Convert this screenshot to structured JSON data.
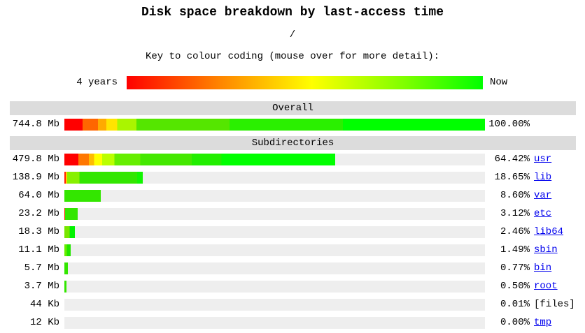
{
  "page": {
    "title": "Disk space breakdown by last-access time",
    "path": "/",
    "key_caption": "Key to colour coding (mouse over for more detail):",
    "key_left_label": "4 years",
    "key_right_label": "Now",
    "overall_header": "Overall",
    "subdirs_header": "Subdirectories"
  },
  "colors": {
    "header_bg": "#dcdcdc",
    "track_bg": "#eeeeee",
    "link_color": "#0000ee",
    "key_gradient": "linear-gradient(90deg,#ff0000 0%,#ff7f00 25%,#ffff00 52%,#7fff00 78%,#00ff00 100%)",
    "oldest_color": "#ff0000",
    "newest_color": "#00ff00"
  },
  "chart_data": {
    "type": "bar",
    "orientation": "horizontal",
    "title": "Disk space breakdown by last-access time",
    "path": "/",
    "key": {
      "caption": "Key to colour coding (mouse over for more detail):",
      "left_label": "4 years",
      "right_label": "Now"
    },
    "sections": [
      "Overall",
      "Subdirectories"
    ],
    "xlim_percent": [
      0,
      100
    ],
    "overall_row": {
      "label": "",
      "size": "744.8 Mb",
      "percent": 100.0,
      "percent_label": "100.00%",
      "is_link": false,
      "bar_background": "linear-gradient(90deg,#ff0000 0%,#ff0000 4.3%,#ff6600 4.3%,#ff6600 8%,#ffaa00 8%,#ffaa00 10%,#ffe400 10%,#ffe400 12.6%,#aaf500 12.6%,#aaf500 17.1%,#55e600 17.1%,#55e600 39.3%,#2af000 39.3%,#2af000 66.2%,#00ff00 66.2%,#00ff00 100%)"
    },
    "subdir_rows": [
      {
        "label": "usr",
        "size": "479.8 Mb",
        "percent": 64.42,
        "percent_label": "64.42%",
        "is_link": true,
        "bar_background": "linear-gradient(90deg,#ff0000 0%,#ff0000 5.2%,#ff7700 5.2%,#ff7700 9%,#ffbb00 9%,#ffbb00 11%,#ffff00 11%,#ffff00 14%,#bbff00 14%,#bbff00 18.5%,#66ee00 18.5%,#66ee00 28%,#44e800 28%,#44e800 47%,#22ee00 47%,#22ee00 58%,#00ff00 58%,#00ff00 100%)"
      },
      {
        "label": "lib",
        "size": "138.9 Mb",
        "percent": 18.65,
        "percent_label": "18.65%",
        "is_link": true,
        "bar_background": "linear-gradient(90deg,#ff2200 0%,#ff2200 2%,#ffcc00 2%,#ffcc00 3.5%,#88f000 3.5%,#88f000 19%,#33e600 19%,#33e600 93%,#11f500 93%,#11f500 100%)"
      },
      {
        "label": "var",
        "size": "64.0 Mb",
        "percent": 8.6,
        "percent_label": "8.60%",
        "is_link": true,
        "bar_background": "#33e600"
      },
      {
        "label": "etc",
        "size": "23.2 Mb",
        "percent": 3.12,
        "percent_label": "3.12%",
        "is_link": true,
        "bar_background": "linear-gradient(90deg,#ff2200 0%,#ff2200 6%,#33e600 6%,#33e600 100%)"
      },
      {
        "label": "lib64",
        "size": "18.3 Mb",
        "percent": 2.46,
        "percent_label": "2.46%",
        "is_link": true,
        "bar_background": "linear-gradient(90deg,#77e600 0%,#77e600 50%,#00f300 50%,#00f300 100%)"
      },
      {
        "label": "sbin",
        "size": "11.1 Mb",
        "percent": 1.49,
        "percent_label": "1.49%",
        "is_link": true,
        "bar_background": "linear-gradient(90deg,#66ee00 0%,#66ee00 40%,#22e600 40%,#22e600 100%)"
      },
      {
        "label": "bin",
        "size": "5.7 Mb",
        "percent": 0.77,
        "percent_label": "0.77%",
        "is_link": true,
        "bar_background": "#33e600"
      },
      {
        "label": "root",
        "size": "3.7 Mb",
        "percent": 0.5,
        "percent_label": "0.50%",
        "is_link": true,
        "bar_background": "#33e600"
      },
      {
        "label": "[files]",
        "size": "44 Kb",
        "percent": 0.01,
        "percent_label": "0.01%",
        "is_link": false,
        "bar_background": "#33e600"
      },
      {
        "label": "tmp",
        "size": "12 Kb",
        "percent": 0.0,
        "percent_label": "0.00%",
        "is_link": true,
        "bar_background": "#33e600"
      }
    ]
  }
}
